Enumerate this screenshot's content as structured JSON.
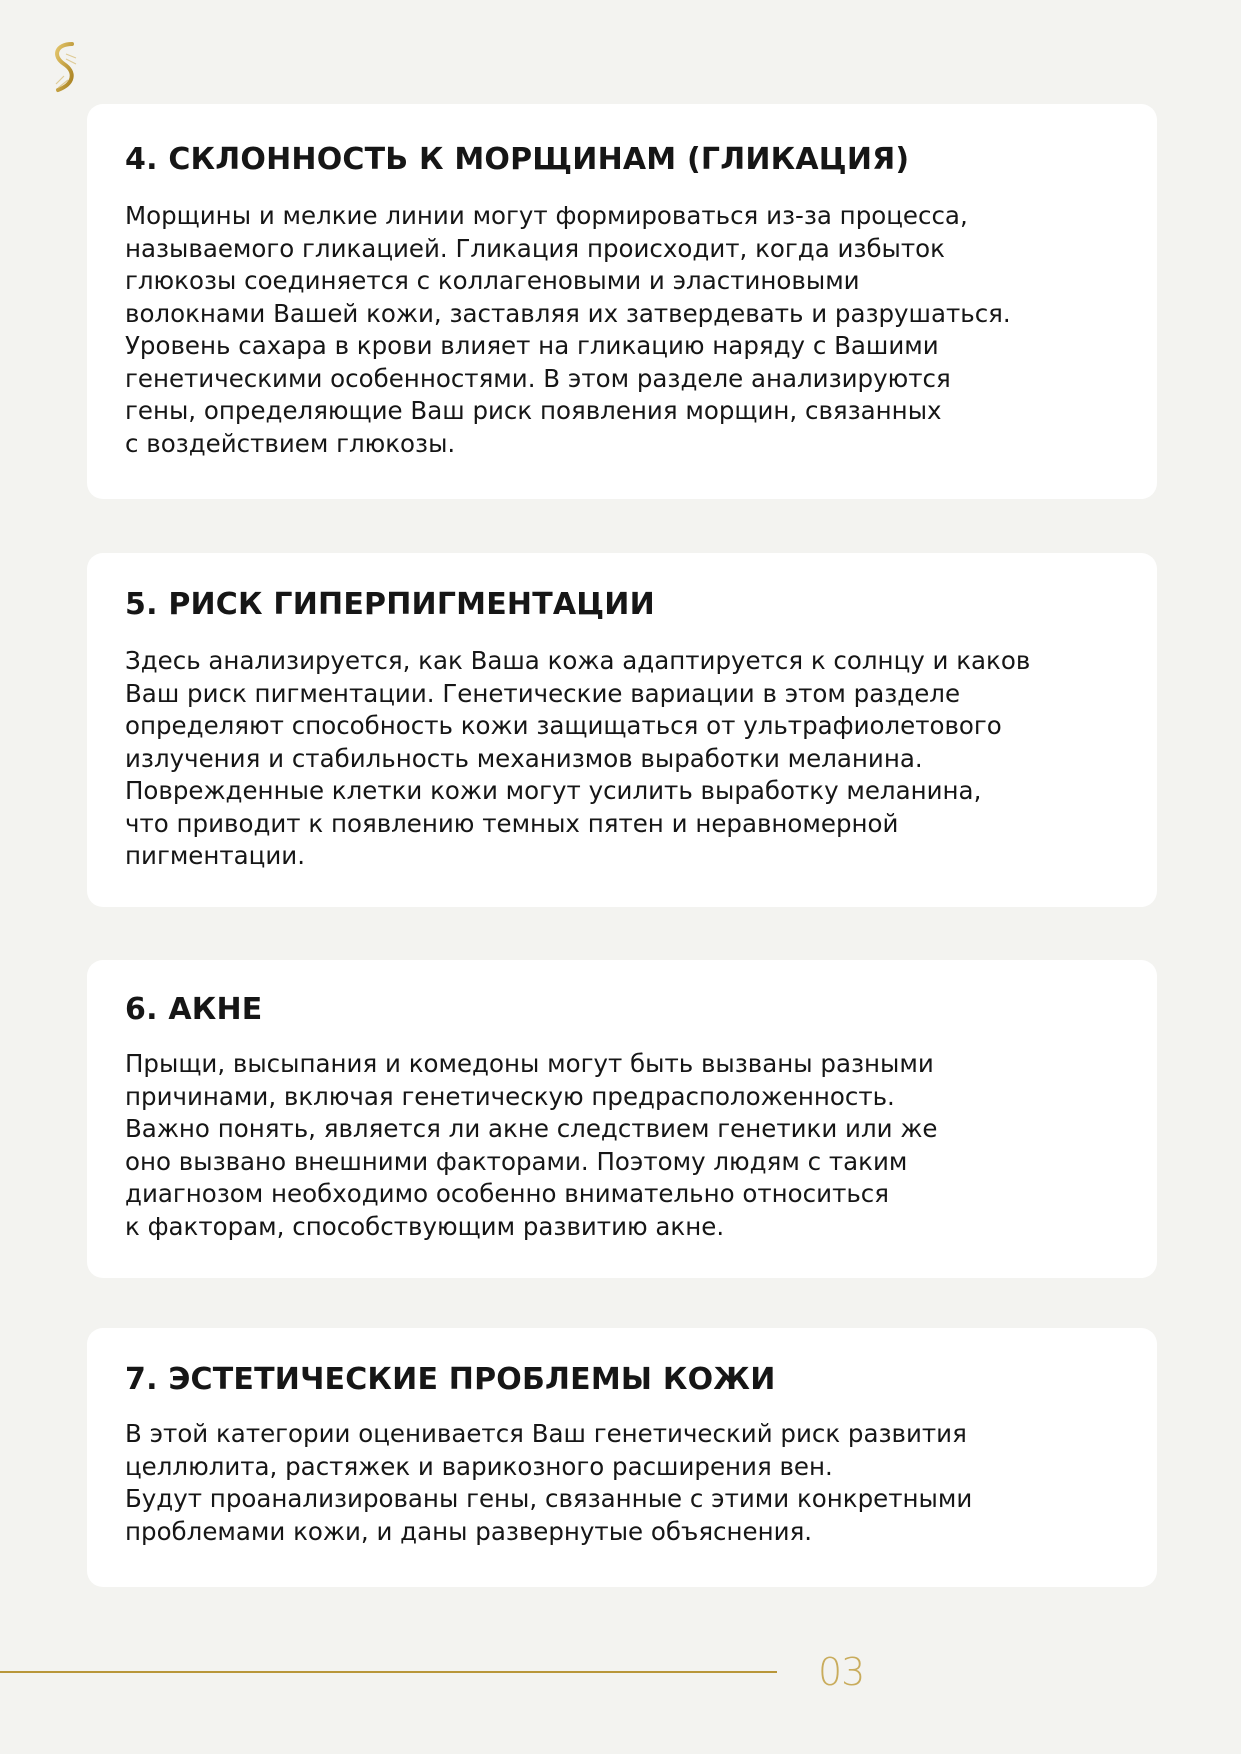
{
  "brand_color": "#b8963a",
  "logo": {
    "icon": "dna-helix-logo"
  },
  "sections": [
    {
      "title": "4. СКЛОННОСТЬ К МОРЩИНАМ (ГЛИКАЦИЯ)",
      "lines": [
        "Морщины и мелкие линии могут формироваться из-за процесса,",
        "называемого гликацией. Гликация происходит, когда избыток",
        "глюкозы соединяется с коллагеновыми и эластиновыми",
        "волокнами Вашей кожи, заставляя их затвердевать и разрушаться.",
        "Уровень сахара в крови влияет на гликацию наряду с Вашими",
        "генетическими особенностями. В этом разделе анализируются",
        "гены, определяющие Ваш риск появления морщин, связанных",
        "с воздействием глюкозы."
      ]
    },
    {
      "title": "5. РИСК ГИПЕРПИГМЕНТАЦИИ",
      "lines": [
        "Здесь анализируется, как Ваша кожа адаптируется к солнцу и каков",
        "Ваш риск пигментации. Генетические вариации в этом разделе",
        "определяют способность кожи защищаться от ультрафиолетового",
        "излучения и стабильность механизмов выработки меланина.",
        "Поврежденные клетки кожи могут усилить выработку меланина,",
        "что приводит к появлению темных пятен и неравномерной",
        "пигментации."
      ]
    },
    {
      "title": "6. АКНЕ",
      "lines": [
        "Прыщи, высыпания и комедоны могут быть вызваны разными",
        "причинами, включая генетическую предрасположенность.",
        "Важно понять, является ли акне следствием генетики или же",
        "оно вызвано внешними факторами. Поэтому людям с таким",
        "диагнозом необходимо особенно внимательно относиться",
        "к факторам, способствующим развитию акне."
      ]
    },
    {
      "title": "7. ЭСТЕТИЧЕСКИЕ ПРОБЛЕМЫ КОЖИ",
      "lines": [
        "В этой категории оценивается Ваш генетический риск развития",
        "целлюлита, растяжек и варикозного расширения вен.",
        "Будут проанализированы гены, связанные с этими конкретными",
        "проблемами кожи, и даны развернутые объяснения."
      ]
    }
  ],
  "footer": {
    "page_number": "03"
  }
}
